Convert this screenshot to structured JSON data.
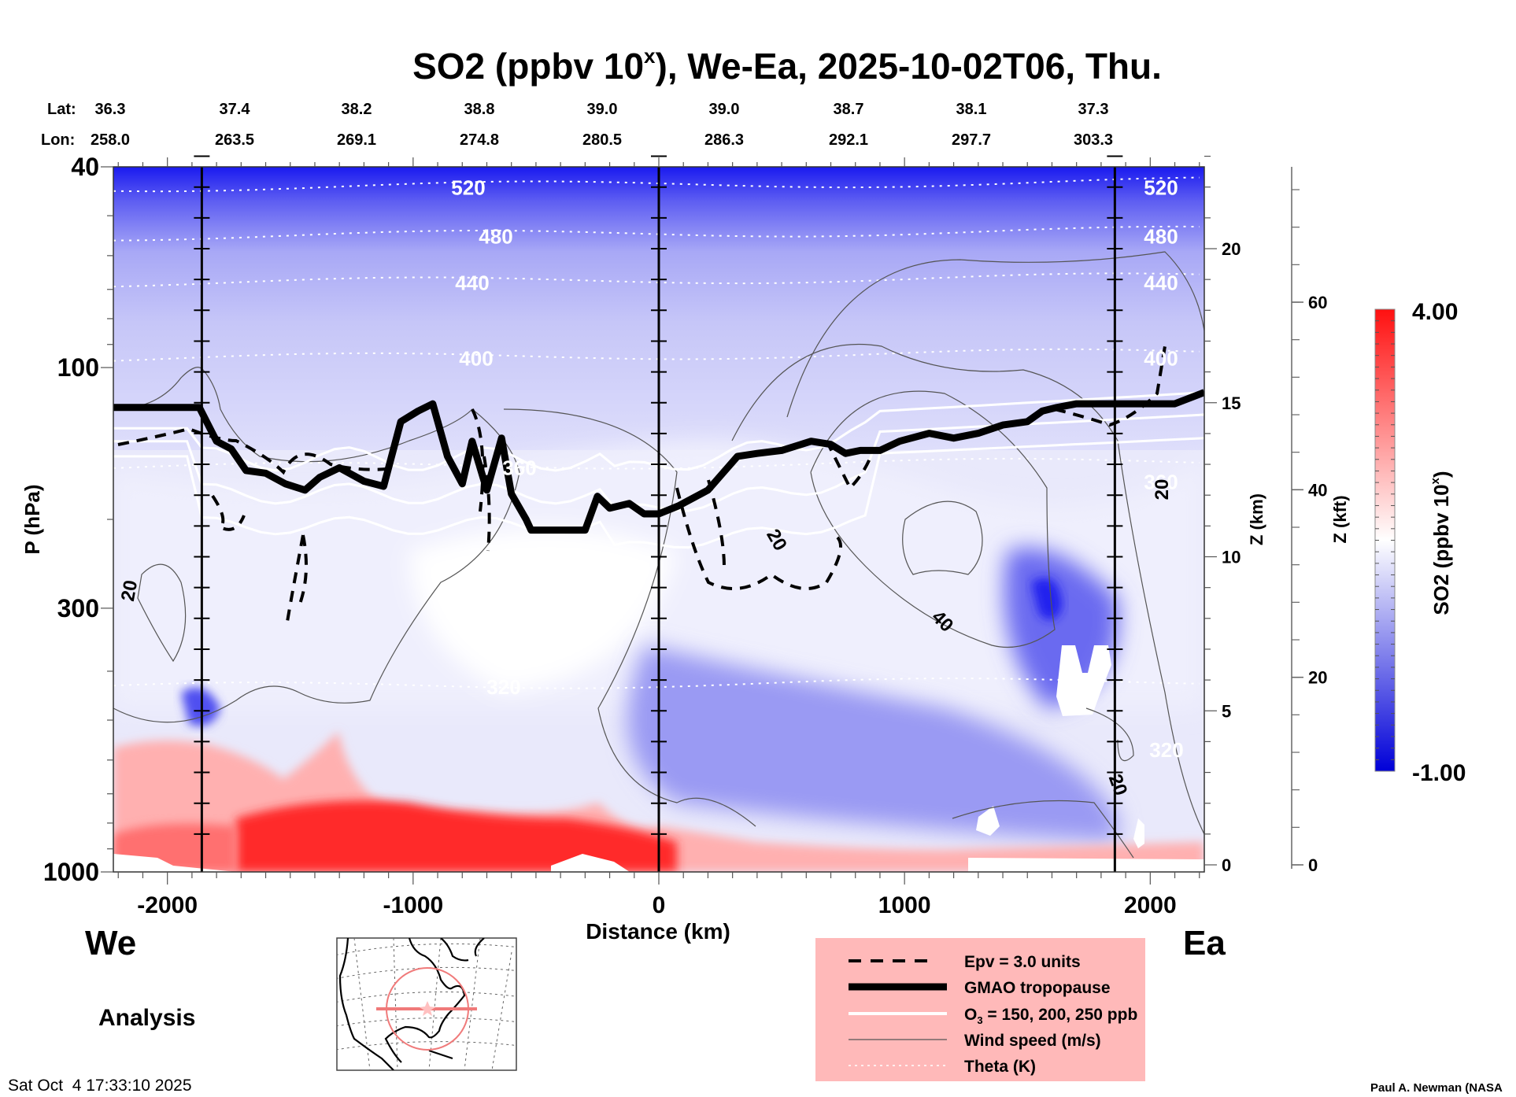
{
  "chart_data": {
    "type": "heatmap",
    "title": "SO2 (ppbv 10",
    "title_superscript": "x",
    "title_suffix": "), We-Ea, 2025-10-02T06, Thu.",
    "xlabel": "Distance (km)",
    "ylabel": "P (hPa)",
    "xlim": [
      -2220,
      2220
    ],
    "ylim": [
      1000,
      40
    ],
    "y_scale": "log",
    "x_ticks": [
      -2000,
      -1000,
      0,
      1000,
      2000
    ],
    "x_tick_labels": [
      "-2000",
      "-1000",
      "0",
      "1000",
      "2000"
    ],
    "y_ticks": [
      40,
      100,
      300,
      1000
    ],
    "y_tick_labels": [
      "40",
      "100",
      "300",
      "1000"
    ],
    "lat_lon_header": {
      "lat_label": "Lat:",
      "lon_label": "Lon:",
      "columns": [
        {
          "lat": "36.3",
          "lon": "258.0"
        },
        {
          "lat": "37.4",
          "lon": "263.5"
        },
        {
          "lat": "38.2",
          "lon": "269.1"
        },
        {
          "lat": "38.8",
          "lon": "274.8"
        },
        {
          "lat": "39.0",
          "lon": "280.5"
        },
        {
          "lat": "39.0",
          "lon": "286.3"
        },
        {
          "lat": "38.7",
          "lon": "292.1"
        },
        {
          "lat": "38.1",
          "lon": "297.7"
        },
        {
          "lat": "37.3",
          "lon": "303.3"
        }
      ]
    },
    "secondary_axes": [
      {
        "label": "Z (km)",
        "ticks": [
          0,
          5,
          10,
          15,
          20
        ],
        "tick_labels": [
          "0",
          "5",
          "10",
          "15",
          "20"
        ]
      },
      {
        "label": "Z (kft)",
        "ticks": [
          0,
          20,
          40,
          60
        ],
        "tick_labels": [
          "0",
          "20",
          "40",
          "60"
        ]
      }
    ],
    "vertical_markers_km": [
      -1860,
      0,
      1856
    ],
    "colorbar": {
      "label": "SO2 (ppbv 10",
      "label_superscript": "x",
      "label_suffix": ")",
      "min": -1.0,
      "max": 4.0,
      "min_label": "-1.00",
      "max_label": "4.00",
      "colors": {
        "low": "#0000e6",
        "mid": "#ffffff",
        "high": "#ff0000"
      },
      "levels": 40
    },
    "theta_contours_K": [
      {
        "value": 520,
        "label": "520",
        "p_hPa": 44
      },
      {
        "value": 480,
        "label": "480",
        "p_hPa": 55
      },
      {
        "value": 440,
        "label": "440",
        "p_hPa": 68
      },
      {
        "value": 400,
        "label": "400",
        "p_hPa": 96
      },
      {
        "value": 360,
        "label": "360",
        "p_hPa": 158
      },
      {
        "value": 320,
        "label": "320",
        "p_hPa": 430
      }
    ],
    "wind_speed_labels": [
      "20",
      "20",
      "40",
      "20",
      "20"
    ],
    "tropopause_hPa": {
      "x_km": [
        -2220,
        -1870,
        -1800,
        -1740,
        -1680,
        -1600,
        -1520,
        -1440,
        -1380,
        -1300,
        -1200,
        -1120,
        -1050,
        -980,
        -920,
        -860,
        -800,
        -760,
        -700,
        -640,
        -600,
        -540,
        -520,
        -300,
        -250,
        -200,
        -120,
        -60,
        0,
        80,
        200,
        320,
        400,
        500,
        620,
        700,
        760,
        820,
        900,
        980,
        1100,
        1200,
        1300,
        1400,
        1500,
        1560,
        1620,
        1700,
        1800,
        1900,
        2000,
        2100,
        2220
      ],
      "p_hPa": [
        120,
        120,
        140,
        145,
        160,
        162,
        170,
        175,
        165,
        158,
        168,
        172,
        128,
        122,
        118,
        150,
        170,
        140,
        175,
        138,
        178,
        200,
        210,
        210,
        180,
        190,
        186,
        195,
        195,
        188,
        175,
        150,
        148,
        146,
        140,
        142,
        148,
        146,
        146,
        140,
        135,
        138,
        135,
        130,
        128,
        122,
        120,
        118,
        118,
        118,
        118,
        118,
        112
      ]
    },
    "legend": [
      {
        "label": "Epv = 3.0 units",
        "style": "dashed-black"
      },
      {
        "label": "GMAO tropopause",
        "style": "thick-black"
      },
      {
        "label": "O3 = 150, 200, 250 ppb",
        "style": "solid-white"
      },
      {
        "label": "Wind speed (m/s)",
        "style": "thin-gray"
      },
      {
        "label": "Theta (K)",
        "style": "dotted-white"
      }
    ],
    "legend_o3_prefix": "O",
    "legend_o3_sub": "3",
    "legend_o3_suffix": " = 150, 200, 250 ppb"
  },
  "labels": {
    "west": "We",
    "east": "Ea",
    "analysis": "Analysis",
    "timestamp": "Sat Oct  4 17:33:10 2025",
    "credit": "Paul A. Newman (NASA"
  },
  "colors": {
    "legend_bg": "#ffb9b9",
    "map_track": "#f07a7a"
  }
}
